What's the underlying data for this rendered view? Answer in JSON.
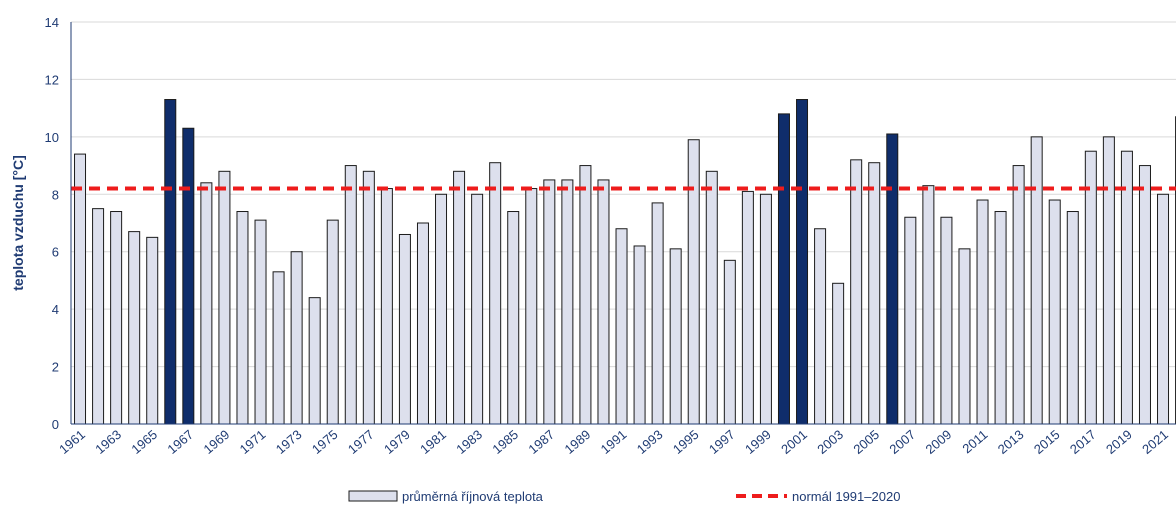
{
  "chart_data": {
    "type": "bar",
    "ylabel": "teplota vzduchu [°C]",
    "xlabel": "",
    "ylim": [
      0,
      14
    ],
    "yticks": [
      0,
      2,
      4,
      6,
      8,
      10,
      12,
      14
    ],
    "grid": true,
    "x": [
      1961,
      1962,
      1963,
      1964,
      1965,
      1966,
      1967,
      1968,
      1969,
      1970,
      1971,
      1972,
      1973,
      1974,
      1975,
      1976,
      1977,
      1978,
      1979,
      1980,
      1981,
      1982,
      1983,
      1984,
      1985,
      1986,
      1987,
      1988,
      1989,
      1990,
      1991,
      1992,
      1993,
      1994,
      1995,
      1996,
      1997,
      1998,
      1999,
      2000,
      2001,
      2002,
      2003,
      2004,
      2005,
      2006,
      2007,
      2008,
      2009,
      2010,
      2011,
      2012,
      2013,
      2014,
      2015,
      2016,
      2017,
      2018,
      2019,
      2020,
      2021,
      2022
    ],
    "xtick_labels": [
      "1961",
      "1963",
      "1965",
      "1967",
      "1969",
      "1971",
      "1973",
      "1975",
      "1977",
      "1979",
      "1981",
      "1983",
      "1985",
      "1987",
      "1989",
      "1991",
      "1993",
      "1995",
      "1997",
      "1999",
      "2001",
      "2003",
      "2005",
      "2007",
      "2009",
      "2011",
      "2013",
      "2015",
      "2017",
      "2019",
      "2021"
    ],
    "series": [
      {
        "name": "průměrná říjnová teplota",
        "values": [
          9.4,
          7.5,
          7.4,
          6.7,
          6.5,
          11.3,
          10.3,
          8.4,
          8.8,
          7.4,
          7.1,
          5.3,
          6.0,
          4.4,
          7.1,
          9.0,
          8.8,
          8.2,
          6.6,
          7.0,
          8.0,
          8.8,
          8.0,
          9.1,
          7.4,
          8.2,
          8.5,
          8.5,
          9.0,
          8.5,
          6.8,
          6.2,
          7.7,
          6.1,
          9.9,
          8.8,
          5.7,
          8.1,
          8.0,
          10.8,
          11.3,
          6.8,
          4.9,
          9.2,
          9.1,
          10.1,
          7.2,
          8.3,
          7.2,
          6.1,
          7.8,
          7.4,
          9.0,
          10.0,
          7.8,
          7.4,
          9.5,
          10.0,
          9.5,
          9.0,
          8.0,
          10.7
        ]
      },
      {
        "name": "normál 1991–2020",
        "type": "line",
        "value": 8.2
      }
    ],
    "highlighted_years": [
      1966,
      1967,
      2000,
      2001,
      2006,
      2022
    ],
    "colors": {
      "bar_fill": "#dde0ed",
      "bar_stroke": "#1b1b1b",
      "highlight_fill": "#0f2d6b",
      "normal_line": "#ee1c1c",
      "axis_text": "#1f3b73",
      "grid": "#d9d9d9"
    },
    "legend": {
      "placement": "bottom",
      "items": [
        "průměrná říjnová teplota",
        "normál 1991–2020"
      ]
    }
  }
}
